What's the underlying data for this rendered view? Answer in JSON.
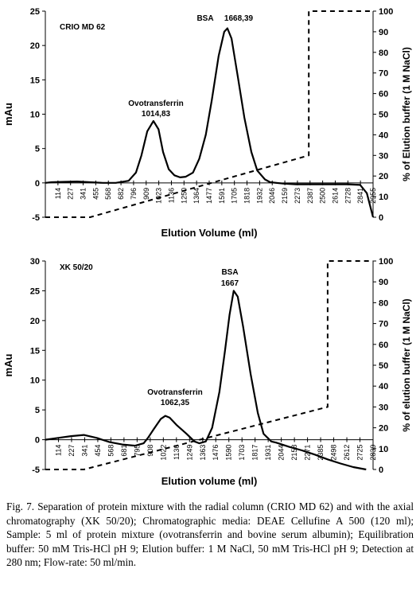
{
  "caption": "Fig. 7.  Separation of protein mixture with the radial column (CRIO MD 62) and with the axial chromatography (XK 50/20); Chromatographic media: DEAE Cellufine A 500 (120 ml); Sample: 5 ml of protein mixture (ovotransferrin and bovine serum albumin); Equilibration buffer: 50 mM Tris-HCl pH 9; Elution buffer: 1 M NaCl, 50 mM Tris-HCl pH 9; Detection at 280 nm; Flow-rate: 50 ml/min.",
  "chart_data": [
    {
      "type": "line",
      "title": "CRIO MD 62",
      "xlabel": "Elution Volume (ml)",
      "ylabel": "mAu",
      "y2label": "% of Elution buffer (1 M NaCl)",
      "ylim": [
        -5,
        25
      ],
      "yticks": [
        -5,
        0,
        5,
        10,
        15,
        20,
        25
      ],
      "y2lim": [
        0,
        100
      ],
      "y2ticks": [
        0,
        10,
        20,
        30,
        40,
        50,
        60,
        70,
        80,
        90,
        100
      ],
      "x_categories": [
        "114",
        "227",
        "341",
        "455",
        "568",
        "682",
        "796",
        "909",
        "1023",
        "1136",
        "1250",
        "1364",
        "1477",
        "1591",
        "1705",
        "1818",
        "1932",
        "2046",
        "2159",
        "2273",
        "2387",
        "2500",
        "2614",
        "2728",
        "2841",
        "2955"
      ],
      "grid": false,
      "annotations": [
        {
          "text": "Ovotransferrin",
          "x": 1014.83,
          "y": 9
        },
        {
          "text": "1014,83",
          "x": 1014.83,
          "y": 9
        },
        {
          "text": "BSA",
          "x": 1668.39,
          "y": 22.5
        },
        {
          "text": "1668,39",
          "x": 1668.39,
          "y": 22.5
        }
      ],
      "series": [
        {
          "axis": "left",
          "style": "solid",
          "points": [
            [
              60,
              0
            ],
            [
              114,
              0.1
            ],
            [
              227,
              0.15
            ],
            [
              341,
              0.2
            ],
            [
              455,
              0.1
            ],
            [
              568,
              0
            ],
            [
              682,
              0
            ],
            [
              796,
              0.3
            ],
            [
              860,
              1.5
            ],
            [
              909,
              4
            ],
            [
              960,
              7.5
            ],
            [
              1014.83,
              9
            ],
            [
              1060,
              7.8
            ],
            [
              1100,
              4.5
            ],
            [
              1150,
              2
            ],
            [
              1200,
              1.1
            ],
            [
              1250,
              0.8
            ],
            [
              1300,
              0.9
            ],
            [
              1364,
              1.5
            ],
            [
              1420,
              3.5
            ],
            [
              1477,
              7
            ],
            [
              1530,
              12
            ],
            [
              1591,
              18.5
            ],
            [
              1640,
              22
            ],
            [
              1668.39,
              22.5
            ],
            [
              1705,
              21
            ],
            [
              1760,
              15.5
            ],
            [
              1818,
              9.5
            ],
            [
              1880,
              4.5
            ],
            [
              1932,
              1.8
            ],
            [
              2000,
              0.5
            ],
            [
              2046,
              0.1
            ],
            [
              2159,
              -0.1
            ],
            [
              2273,
              -0.2
            ],
            [
              2387,
              -0.2
            ],
            [
              2500,
              -0.2
            ],
            [
              2614,
              -0.2
            ],
            [
              2728,
              -0.2
            ],
            [
              2841,
              -0.3
            ],
            [
              2900,
              -1.5
            ],
            [
              2955,
              -5
            ]
          ]
        },
        {
          "axis": "right",
          "style": "dashed",
          "points": [
            [
              60,
              0
            ],
            [
              455,
              0
            ],
            [
              2387,
              30
            ],
            [
              2387,
              100
            ],
            [
              2955,
              100
            ]
          ]
        }
      ]
    },
    {
      "type": "line",
      "title": "XK 50/20",
      "xlabel": "Elution volume (ml)",
      "ylabel": "mAu",
      "y2label": "% of elution buffer (1 M NaCl)",
      "ylim": [
        -5,
        30
      ],
      "yticks": [
        -5,
        0,
        5,
        10,
        15,
        20,
        25,
        30
      ],
      "y2lim": [
        0,
        100
      ],
      "y2ticks": [
        0,
        10,
        20,
        30,
        40,
        50,
        60,
        70,
        80,
        90,
        100
      ],
      "x_categories": [
        "114",
        "227",
        "341",
        "454",
        "568",
        "681",
        "795",
        "908",
        "1022",
        "1136",
        "1249",
        "1363",
        "1476",
        "1590",
        "1703",
        "1817",
        "1931",
        "2044",
        "2158",
        "2271",
        "2385",
        "2498",
        "2612",
        "2725",
        "2839"
      ],
      "grid": false,
      "annotations": [
        {
          "text": "Ovotransferrin",
          "x": 1062.35,
          "y": 4
        },
        {
          "text": "1062,35",
          "x": 1062.35,
          "y": 4
        },
        {
          "text": "BSA",
          "x": 1667,
          "y": 25
        },
        {
          "text": "1667",
          "x": 1667,
          "y": 25
        }
      ],
      "series": [
        {
          "axis": "left",
          "style": "solid",
          "points": [
            [
              0,
              0
            ],
            [
              114,
              0.3
            ],
            [
              227,
              0.6
            ],
            [
              341,
              0.8
            ],
            [
              454,
              0.3
            ],
            [
              568,
              -0.4
            ],
            [
              681,
              -0.8
            ],
            [
              795,
              -1
            ],
            [
              870,
              -0.6
            ],
            [
              908,
              0.3
            ],
            [
              960,
              1.8
            ],
            [
              1022,
              3.5
            ],
            [
              1062.35,
              4
            ],
            [
              1100,
              3.7
            ],
            [
              1160,
              2.5
            ],
            [
              1249,
              1
            ],
            [
              1320,
              -0.3
            ],
            [
              1363,
              -0.6
            ],
            [
              1420,
              -0.3
            ],
            [
              1476,
              2
            ],
            [
              1540,
              8
            ],
            [
              1590,
              15
            ],
            [
              1630,
              21
            ],
            [
              1667,
              25
            ],
            [
              1703,
              24
            ],
            [
              1750,
              19
            ],
            [
              1817,
              11
            ],
            [
              1880,
              4.5
            ],
            [
              1931,
              1
            ],
            [
              2000,
              -0.3
            ],
            [
              2044,
              -0.5
            ],
            [
              2158,
              -1.2
            ],
            [
              2271,
              -1.8
            ],
            [
              2385,
              -2.5
            ],
            [
              2498,
              -3.3
            ],
            [
              2612,
              -4
            ],
            [
              2725,
              -4.6
            ],
            [
              2839,
              -5
            ]
          ]
        },
        {
          "axis": "right",
          "style": "dashed",
          "points": [
            [
              0,
              0
            ],
            [
              341,
              0
            ],
            [
              2498,
              30
            ],
            [
              2498,
              100
            ],
            [
              2900,
              100
            ]
          ]
        }
      ]
    }
  ]
}
